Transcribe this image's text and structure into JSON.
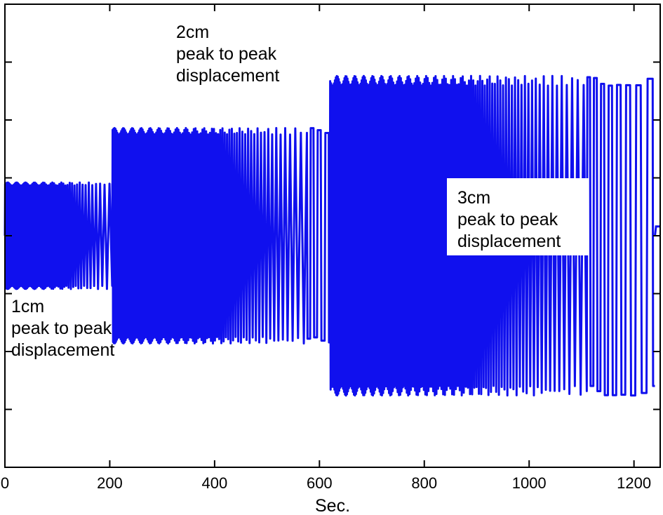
{
  "chart_data": {
    "type": "line",
    "title": "",
    "xlabel": "Sec.",
    "ylabel": "",
    "xlim": [
      0,
      1250
    ],
    "ylim": [
      -2.0,
      2.0
    ],
    "x_ticks": [
      0,
      200,
      400,
      600,
      800,
      1000,
      1200
    ],
    "y_tick_values": [
      -1.5,
      -1.0,
      -0.5,
      0,
      0.5,
      1.0,
      1.5
    ],
    "grid": false,
    "color": "#1010ee",
    "segments": [
      {
        "x_start": 0,
        "x_end": 205,
        "amplitude": 0.46,
        "period_start": 1.8,
        "period_end": 11
      },
      {
        "x_start": 205,
        "x_end": 620,
        "amplitude": 0.93,
        "period_start": 1.8,
        "period_end": 17
      },
      {
        "x_start": 620,
        "x_end": 1240,
        "amplitude": 1.38,
        "period_start": 1.8,
        "period_end": 26
      }
    ],
    "end_value": 0.08,
    "annotations": [
      {
        "lines": [
          "1cm",
          "peak to peak",
          "displacement"
        ]
      },
      {
        "lines": [
          "2cm",
          "peak to peak",
          "displacement"
        ]
      },
      {
        "lines": [
          "3cm",
          "peak to peak",
          "displacement"
        ]
      }
    ]
  }
}
